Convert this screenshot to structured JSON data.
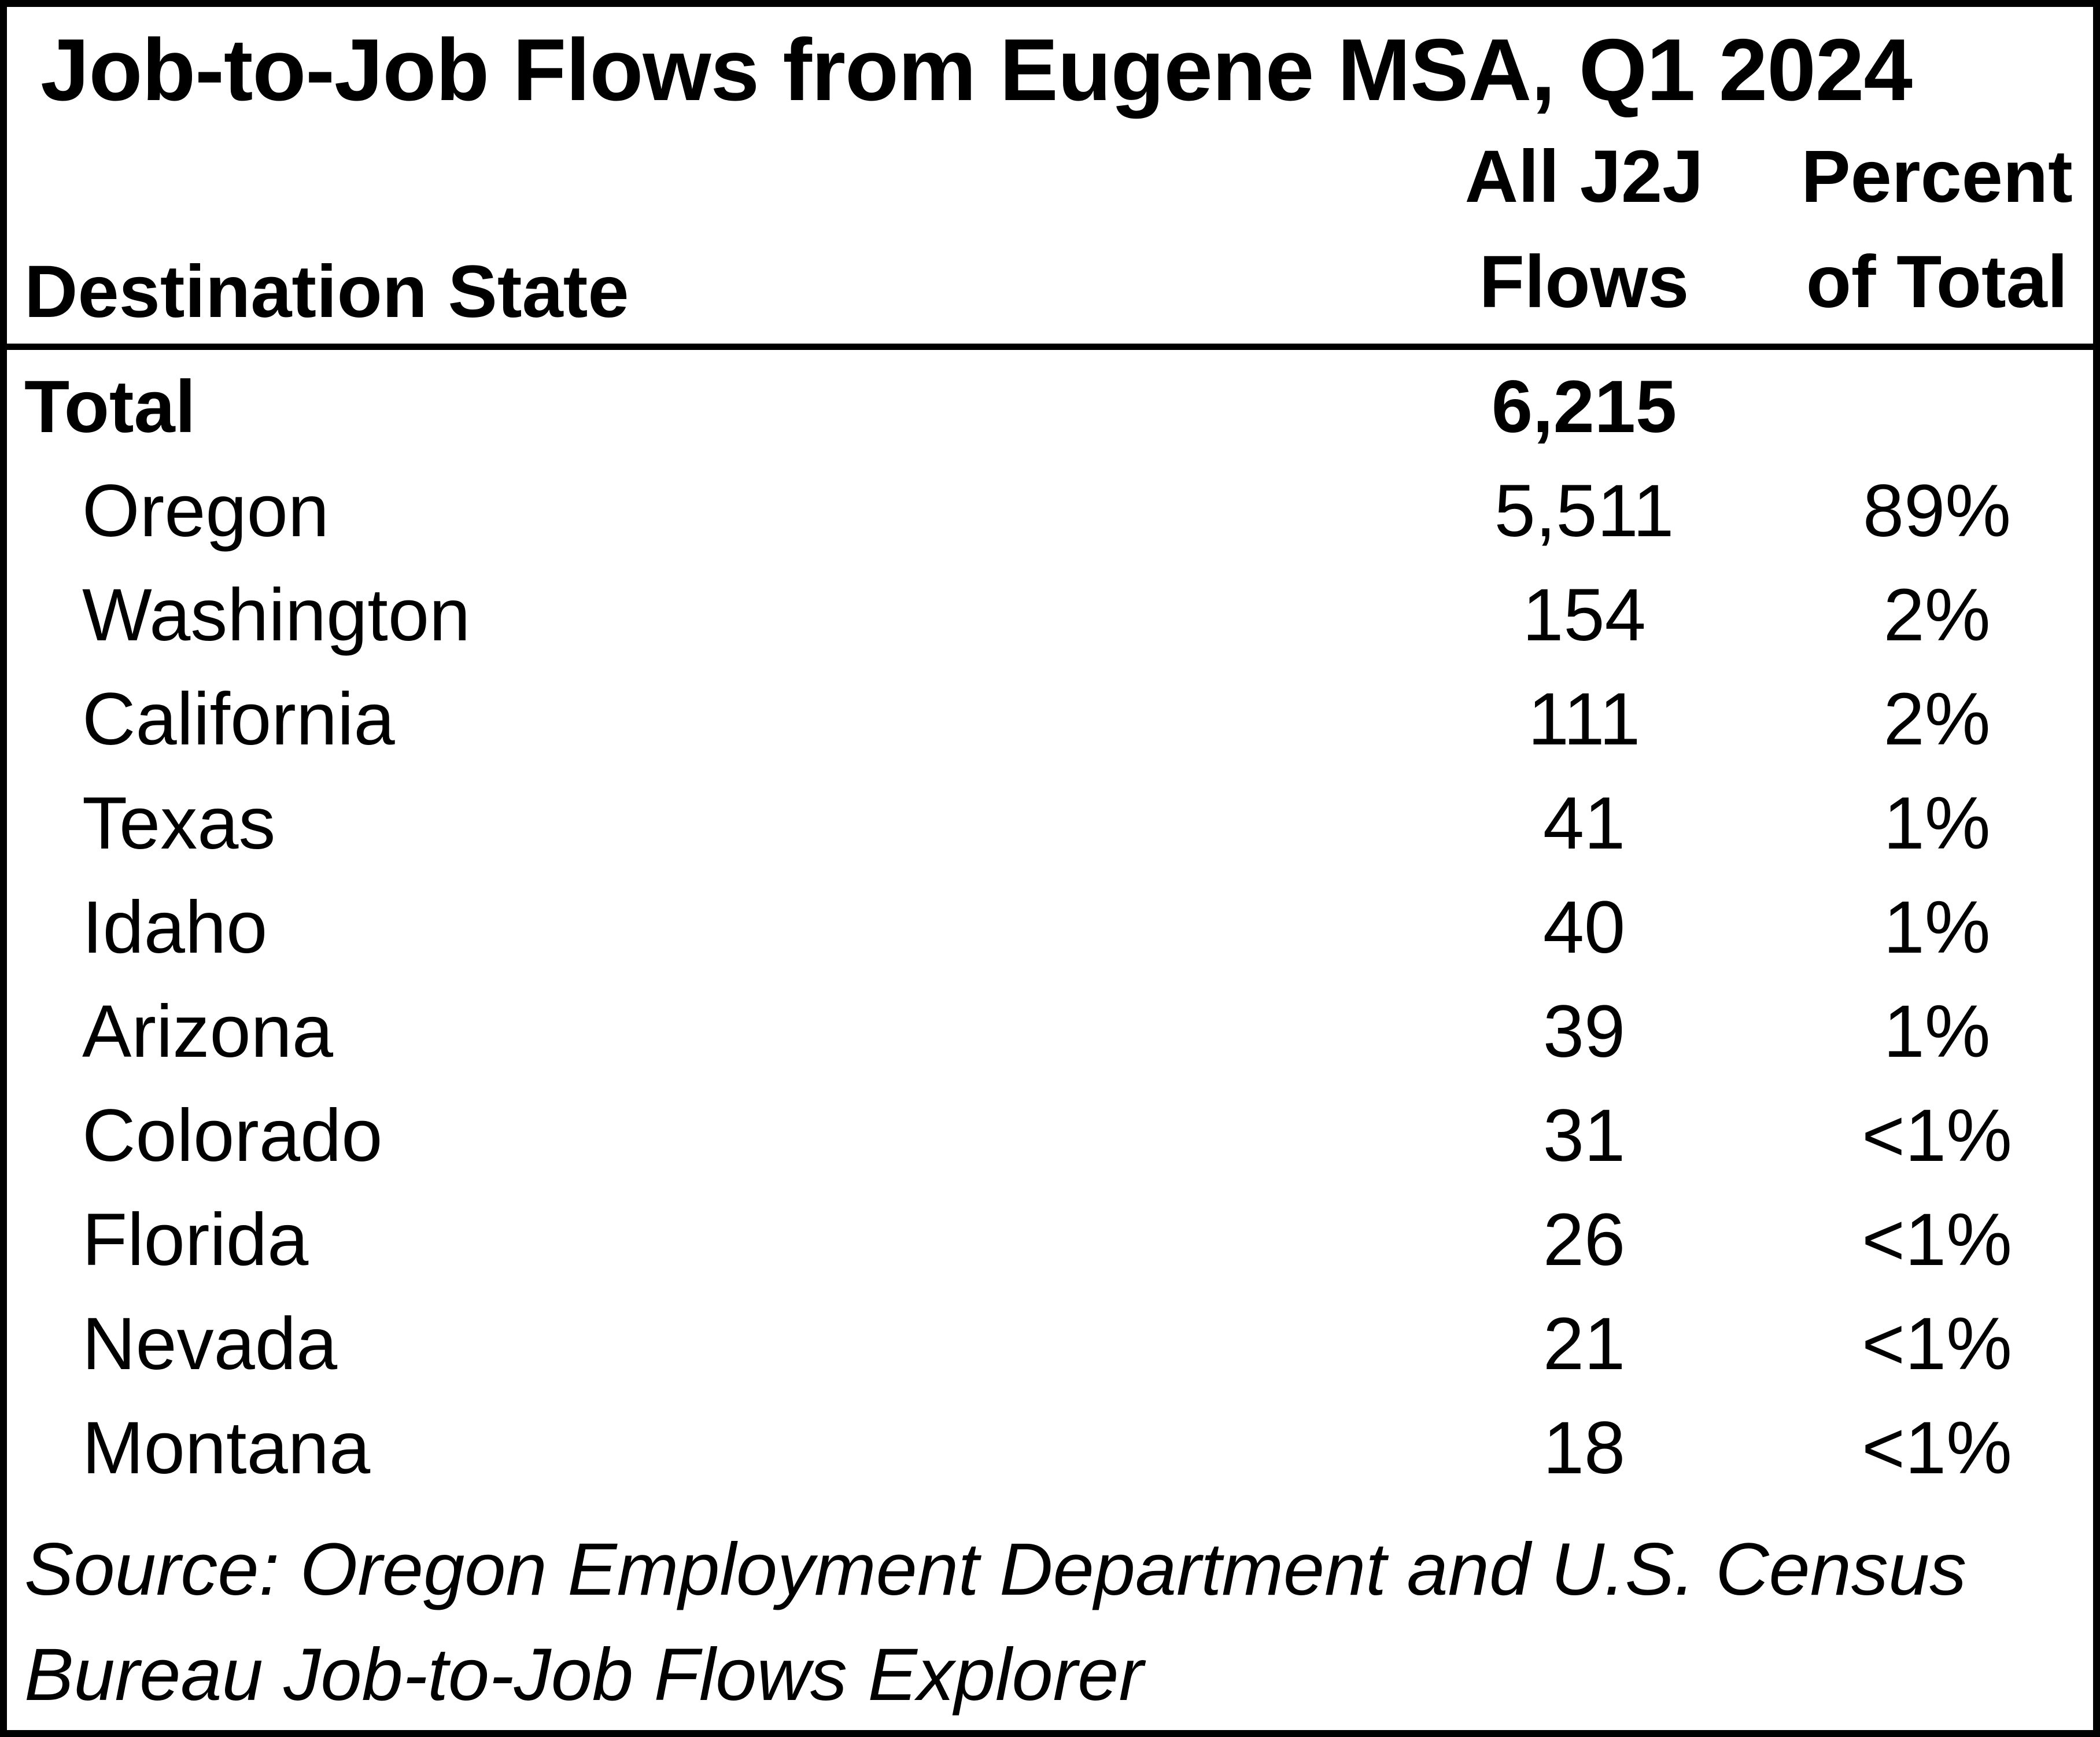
{
  "title": "Job-to-Job Flows from Eugene MSA, Q1 2024",
  "table": {
    "header": {
      "state_label": "Destination State",
      "flows_label_line1": "All J2J",
      "flows_label_line2": "Flows",
      "percent_label_line1": "Percent",
      "percent_label_line2": "of Total"
    },
    "rows": [
      {
        "state": "Total",
        "flows": "6,215",
        "percent": ""
      },
      {
        "state": "Oregon",
        "flows": "5,511",
        "percent": "89%"
      },
      {
        "state": "Washington",
        "flows": "154",
        "percent": "2%"
      },
      {
        "state": "California",
        "flows": "111",
        "percent": "2%"
      },
      {
        "state": "Texas",
        "flows": "41",
        "percent": "1%"
      },
      {
        "state": "Idaho",
        "flows": "40",
        "percent": "1%"
      },
      {
        "state": "Arizona",
        "flows": "39",
        "percent": "1%"
      },
      {
        "state": "Colorado",
        "flows": "31",
        "percent": "<1%"
      },
      {
        "state": "Florida",
        "flows": "26",
        "percent": "<1%"
      },
      {
        "state": "Nevada",
        "flows": "21",
        "percent": "<1%"
      },
      {
        "state": "Montana",
        "flows": "18",
        "percent": "<1%"
      }
    ]
  },
  "source": {
    "lines": [
      "Source: Oregon Employment Department and U.S. Census",
      "Bureau Job-to-Job Flows Explorer"
    ]
  },
  "colors": {
    "text": "#000000",
    "background": "#ffffff",
    "border": "#000000"
  }
}
